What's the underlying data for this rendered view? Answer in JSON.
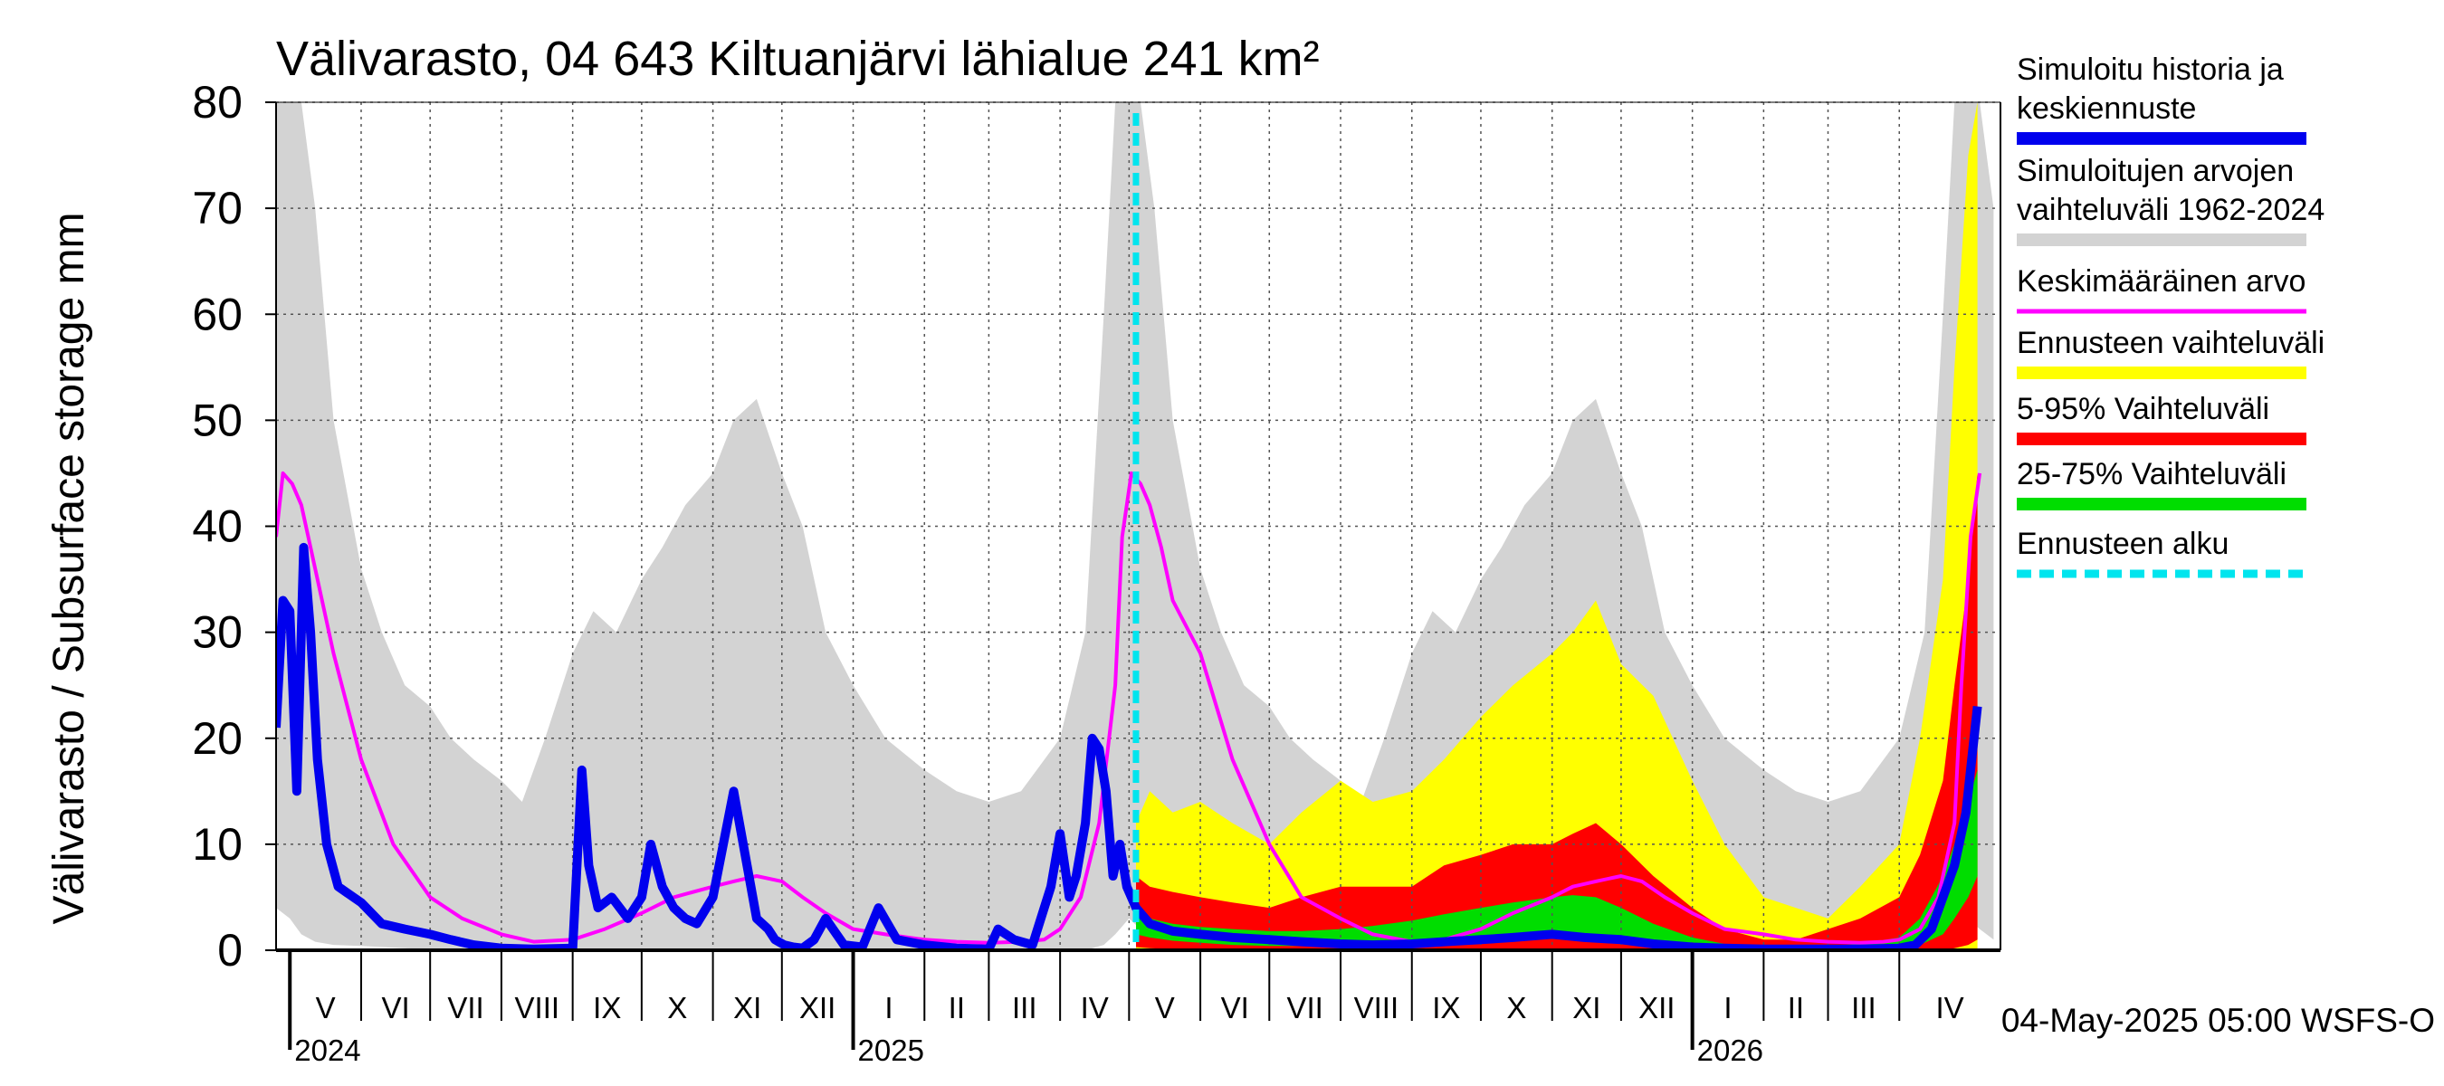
{
  "chart_data": {
    "type": "area",
    "title": "Välivarasto, 04 643 Kiltuanjärvi lähialue 241 km²",
    "ylabel": "Välivarasto / Subsurface storage  mm",
    "xlabel": "",
    "ylim": [
      0,
      80
    ],
    "yticks": [
      0,
      10,
      20,
      30,
      40,
      50,
      60,
      70,
      80
    ],
    "x_start": "2024-04-25",
    "x_end": "2026-05-15",
    "forecast_start": "2025-05-04",
    "months": [
      {
        "label": "V",
        "start": "2024-05-01"
      },
      {
        "label": "VI",
        "start": "2024-06-01"
      },
      {
        "label": "VII",
        "start": "2024-07-01"
      },
      {
        "label": "VIII",
        "start": "2024-08-01"
      },
      {
        "label": "IX",
        "start": "2024-09-01"
      },
      {
        "label": "X",
        "start": "2024-10-01"
      },
      {
        "label": "XI",
        "start": "2024-11-01"
      },
      {
        "label": "XII",
        "start": "2024-12-01"
      },
      {
        "label": "I",
        "start": "2025-01-01"
      },
      {
        "label": "II",
        "start": "2025-02-01"
      },
      {
        "label": "III",
        "start": "2025-03-01"
      },
      {
        "label": "IV",
        "start": "2025-04-01"
      },
      {
        "label": "V",
        "start": "2025-05-01"
      },
      {
        "label": "VI",
        "start": "2025-06-01"
      },
      {
        "label": "VII",
        "start": "2025-07-01"
      },
      {
        "label": "VIII",
        "start": "2025-08-01"
      },
      {
        "label": "IX",
        "start": "2025-09-01"
      },
      {
        "label": "X",
        "start": "2025-10-01"
      },
      {
        "label": "XI",
        "start": "2025-11-01"
      },
      {
        "label": "XII",
        "start": "2025-12-01"
      },
      {
        "label": "I",
        "start": "2026-01-01"
      },
      {
        "label": "II",
        "start": "2026-02-01"
      },
      {
        "label": "III",
        "start": "2026-03-01"
      },
      {
        "label": "IV",
        "start": "2026-04-01"
      }
    ],
    "year_labels": [
      {
        "label": "2024",
        "date": "2024-05-01"
      },
      {
        "label": "2025",
        "date": "2025-01-01"
      },
      {
        "label": "2026",
        "date": "2026-01-01"
      }
    ],
    "colors": {
      "history": "#0000ee",
      "range_1962_2024": "#d3d3d3",
      "mean": "#ff00ff",
      "forecast_range": "#ffff00",
      "p5_95": "#ff0000",
      "p25_75": "#00dd00",
      "forecast_start": "#00e5ee"
    },
    "series": [
      {
        "name": "Simuloitujen arvojen vaihteluväli 1962-2024",
        "kind": "band",
        "x": [
          "2024-04-25",
          "2024-05-01",
          "2024-05-06",
          "2024-05-12",
          "2024-05-20",
          "2024-06-01",
          "2024-06-10",
          "2024-06-20",
          "2024-07-01",
          "2024-07-10",
          "2024-07-20",
          "2024-08-01",
          "2024-08-10",
          "2024-08-20",
          "2024-09-01",
          "2024-09-10",
          "2024-09-20",
          "2024-10-01",
          "2024-10-10",
          "2024-10-20",
          "2024-11-01",
          "2024-11-10",
          "2024-11-20",
          "2024-12-01",
          "2024-12-10",
          "2024-12-20",
          "2025-01-01",
          "2025-01-15",
          "2025-02-01",
          "2025-02-15",
          "2025-03-01",
          "2025-03-15",
          "2025-04-01",
          "2025-04-12",
          "2025-04-20",
          "2025-04-25",
          "2025-05-01",
          "2025-05-06",
          "2025-05-12",
          "2025-05-20",
          "2025-06-01",
          "2025-06-10",
          "2025-06-20",
          "2025-07-01",
          "2025-07-10",
          "2025-07-20",
          "2025-08-01",
          "2025-08-10",
          "2025-08-20",
          "2025-09-01",
          "2025-09-10",
          "2025-09-20",
          "2025-10-01",
          "2025-10-10",
          "2025-10-20",
          "2025-11-01",
          "2025-11-10",
          "2025-11-20",
          "2025-12-01",
          "2025-12-10",
          "2025-12-20",
          "2026-01-01",
          "2026-01-15",
          "2026-02-01",
          "2026-02-15",
          "2026-03-01",
          "2026-03-15",
          "2026-04-01",
          "2026-04-12",
          "2026-04-20",
          "2026-04-25",
          "2026-05-01",
          "2026-05-06",
          "2026-05-12"
        ],
        "low": [
          4,
          3,
          1.5,
          0.8,
          0.5,
          0.4,
          0.3,
          0.2,
          0.1,
          0.1,
          0,
          0,
          0,
          0,
          0,
          0,
          0,
          0,
          0,
          0,
          0,
          0,
          0,
          0,
          0,
          0,
          0,
          0,
          0,
          0,
          0,
          0,
          0,
          0,
          0.5,
          1.5,
          3,
          2,
          1,
          0.6,
          0.4,
          0.3,
          0.2,
          0.1,
          0.1,
          0,
          0,
          0,
          0,
          0,
          0,
          0,
          0,
          0,
          0,
          0,
          0,
          0,
          0,
          0,
          0,
          0,
          0,
          0,
          0,
          0,
          0,
          0,
          0,
          0.5,
          1.5,
          3,
          2,
          1
        ],
        "high": [
          80,
          80,
          80,
          70,
          50,
          36,
          30,
          25,
          23,
          20,
          18,
          16,
          14,
          20,
          28,
          32,
          30,
          35,
          38,
          42,
          45,
          50,
          52,
          45,
          40,
          30,
          25,
          20,
          17,
          15,
          14,
          15,
          20,
          30,
          60,
          80,
          80,
          80,
          70,
          50,
          36,
          30,
          25,
          23,
          20,
          18,
          16,
          14,
          20,
          28,
          32,
          30,
          35,
          38,
          42,
          45,
          50,
          52,
          45,
          40,
          30,
          25,
          20,
          17,
          15,
          14,
          15,
          20,
          30,
          60,
          80,
          80,
          80,
          70
        ]
      },
      {
        "name": "Ennusteen vaihteluväli",
        "kind": "band",
        "x": [
          "2025-05-04",
          "2025-05-10",
          "2025-05-20",
          "2025-06-01",
          "2025-06-15",
          "2025-07-01",
          "2025-07-15",
          "2025-08-01",
          "2025-08-15",
          "2025-09-01",
          "2025-09-15",
          "2025-10-01",
          "2025-10-15",
          "2025-11-01",
          "2025-11-10",
          "2025-11-20",
          "2025-12-01",
          "2025-12-15",
          "2026-01-01",
          "2026-01-15",
          "2026-02-01",
          "2026-02-15",
          "2026-03-01",
          "2026-03-15",
          "2026-04-01",
          "2026-04-10",
          "2026-04-20",
          "2026-04-25",
          "2026-05-01",
          "2026-05-05"
        ],
        "low": [
          0,
          0,
          0,
          0,
          0,
          0,
          0,
          0,
          0,
          0,
          0,
          0,
          0,
          0,
          0,
          0,
          0,
          0,
          0,
          0,
          0,
          0,
          0,
          0,
          0,
          0,
          0,
          0,
          0,
          0
        ],
        "high": [
          12,
          15,
          13,
          14,
          12,
          10,
          13,
          16,
          14,
          15,
          18,
          22,
          25,
          28,
          30,
          33,
          27,
          24,
          16,
          10,
          5,
          4,
          3,
          6,
          10,
          20,
          35,
          55,
          75,
          80
        ]
      },
      {
        "name": "5-95% Vaihteluväli",
        "kind": "band",
        "x": [
          "2025-05-04",
          "2025-05-10",
          "2025-05-20",
          "2025-06-01",
          "2025-06-15",
          "2025-07-01",
          "2025-07-15",
          "2025-08-01",
          "2025-08-15",
          "2025-09-01",
          "2025-09-15",
          "2025-10-01",
          "2025-10-15",
          "2025-11-01",
          "2025-11-10",
          "2025-11-20",
          "2025-12-01",
          "2025-12-15",
          "2026-01-01",
          "2026-01-15",
          "2026-02-01",
          "2026-02-15",
          "2026-03-01",
          "2026-03-15",
          "2026-04-01",
          "2026-04-10",
          "2026-04-20",
          "2026-04-25",
          "2026-05-01",
          "2026-05-05"
        ],
        "low": [
          0.3,
          0.2,
          0.1,
          0.1,
          0.1,
          0,
          0,
          0,
          0,
          0,
          0,
          0,
          0,
          0,
          0,
          0,
          0,
          0,
          0,
          0,
          0,
          0,
          0,
          0,
          0,
          0,
          0,
          0.2,
          0.5,
          1
        ],
        "high": [
          7,
          6,
          5.5,
          5,
          4.5,
          4,
          5,
          6,
          6,
          6,
          8,
          9,
          10,
          10,
          11,
          12,
          10,
          7,
          4,
          2,
          1,
          1,
          2,
          3,
          5,
          9,
          16,
          25,
          35,
          45
        ]
      },
      {
        "name": "25-75% Vaihteluväli",
        "kind": "band",
        "x": [
          "2025-05-04",
          "2025-05-10",
          "2025-05-20",
          "2025-06-01",
          "2025-06-15",
          "2025-07-01",
          "2025-07-15",
          "2025-08-01",
          "2025-08-15",
          "2025-09-01",
          "2025-09-15",
          "2025-10-01",
          "2025-10-15",
          "2025-11-01",
          "2025-11-10",
          "2025-11-20",
          "2025-12-01",
          "2025-12-15",
          "2026-01-01",
          "2026-01-15",
          "2026-02-01",
          "2026-02-15",
          "2026-03-01",
          "2026-03-15",
          "2026-04-01",
          "2026-04-10",
          "2026-04-20",
          "2026-04-25",
          "2026-05-01",
          "2026-05-05"
        ],
        "low": [
          1.5,
          1.2,
          0.9,
          0.7,
          0.5,
          0.4,
          0.4,
          0.5,
          0.6,
          0.8,
          1,
          1.2,
          1.4,
          1.5,
          1.5,
          1.4,
          1.2,
          0.8,
          0.4,
          0.2,
          0.1,
          0.1,
          0.1,
          0.1,
          0.2,
          0.5,
          1.5,
          3,
          5,
          7
        ],
        "high": [
          3.5,
          3,
          2.5,
          2.2,
          2,
          1.8,
          1.8,
          2,
          2.3,
          2.8,
          3.4,
          4,
          4.5,
          5,
          5.2,
          5,
          4,
          2.5,
          1.2,
          0.6,
          0.3,
          0.3,
          0.4,
          0.6,
          1.2,
          3,
          7,
          10,
          14,
          17
        ]
      },
      {
        "name": "Keskimääräinen arvo",
        "kind": "line",
        "x": [
          "2024-04-25",
          "2024-04-28",
          "2024-05-02",
          "2024-05-06",
          "2024-05-10",
          "2024-05-15",
          "2024-05-20",
          "2024-06-01",
          "2024-06-15",
          "2024-07-01",
          "2024-07-15",
          "2024-08-01",
          "2024-08-15",
          "2024-09-01",
          "2024-09-15",
          "2024-10-01",
          "2024-10-15",
          "2024-11-01",
          "2024-11-10",
          "2024-11-20",
          "2024-12-01",
          "2024-12-10",
          "2024-12-20",
          "2025-01-01",
          "2025-01-15",
          "2025-02-01",
          "2025-02-15",
          "2025-03-01",
          "2025-03-15",
          "2025-03-25",
          "2025-04-01",
          "2025-04-10",
          "2025-04-18",
          "2025-04-25",
          "2025-04-28",
          "2025-05-02",
          "2025-05-06",
          "2025-05-10",
          "2025-05-15",
          "2025-05-20",
          "2025-06-01",
          "2025-06-15",
          "2025-07-01",
          "2025-07-15",
          "2025-08-01",
          "2025-08-15",
          "2025-09-01",
          "2025-09-15",
          "2025-10-01",
          "2025-10-15",
          "2025-11-01",
          "2025-11-10",
          "2025-11-20",
          "2025-12-01",
          "2025-12-10",
          "2025-12-20",
          "2026-01-01",
          "2026-01-15",
          "2026-02-01",
          "2026-02-15",
          "2026-03-01",
          "2026-03-15",
          "2026-03-25",
          "2026-04-01",
          "2026-04-10",
          "2026-04-18",
          "2026-04-25",
          "2026-04-28",
          "2026-05-02",
          "2026-05-06"
        ],
        "values": [
          39,
          45,
          44,
          42,
          38,
          33,
          28,
          18,
          10,
          5,
          3,
          1.5,
          0.8,
          1,
          2,
          3.5,
          5,
          6,
          6.5,
          7,
          6.5,
          5,
          3.5,
          2,
          1.5,
          1,
          0.8,
          0.7,
          0.8,
          1,
          2,
          5,
          12,
          25,
          39,
          45,
          44,
          42,
          38,
          33,
          28,
          18,
          10,
          5,
          3,
          1.5,
          0.8,
          1,
          2,
          3.5,
          5,
          6,
          6.5,
          7,
          6.5,
          5,
          3.5,
          2,
          1.5,
          1,
          0.8,
          0.7,
          0.8,
          1,
          2,
          5,
          12,
          25,
          39,
          45
        ]
      },
      {
        "name": "Simuloitu historia ja keskiennuste",
        "kind": "line",
        "x": [
          "2024-04-25",
          "2024-04-28",
          "2024-05-01",
          "2024-05-04",
          "2024-05-07",
          "2024-05-10",
          "2024-05-13",
          "2024-05-17",
          "2024-05-22",
          "2024-06-01",
          "2024-06-10",
          "2024-06-20",
          "2024-07-01",
          "2024-07-10",
          "2024-07-20",
          "2024-08-01",
          "2024-08-15",
          "2024-09-01",
          "2024-09-05",
          "2024-09-08",
          "2024-09-12",
          "2024-09-18",
          "2024-09-25",
          "2024-10-01",
          "2024-10-05",
          "2024-10-10",
          "2024-10-15",
          "2024-10-20",
          "2024-10-25",
          "2024-11-01",
          "2024-11-10",
          "2024-11-20",
          "2024-11-25",
          "2024-11-28",
          "2024-12-02",
          "2024-12-06",
          "2024-12-10",
          "2024-12-15",
          "2024-12-20",
          "2024-12-28",
          "2025-01-05",
          "2025-01-12",
          "2025-01-20",
          "2025-02-01",
          "2025-02-15",
          "2025-03-01",
          "2025-03-05",
          "2025-03-12",
          "2025-03-20",
          "2025-03-28",
          "2025-04-01",
          "2025-04-05",
          "2025-04-08",
          "2025-04-12",
          "2025-04-15",
          "2025-04-18",
          "2025-04-21",
          "2025-04-24",
          "2025-04-27",
          "2025-04-30",
          "2025-05-04",
          "2025-05-10",
          "2025-05-20",
          "2025-06-01",
          "2025-06-15",
          "2025-07-01",
          "2025-07-15",
          "2025-08-01",
          "2025-08-15",
          "2025-09-01",
          "2025-09-15",
          "2025-10-01",
          "2025-10-15",
          "2025-11-01",
          "2025-11-15",
          "2025-12-01",
          "2025-12-15",
          "2026-01-01",
          "2026-01-15",
          "2026-02-01",
          "2026-02-15",
          "2026-03-01",
          "2026-03-15",
          "2026-04-01",
          "2026-04-08",
          "2026-04-15",
          "2026-04-20",
          "2026-04-25",
          "2026-04-30",
          "2026-05-05"
        ],
        "values": [
          21,
          33,
          32,
          15,
          38,
          30,
          18,
          10,
          6,
          4.5,
          2.5,
          2,
          1.5,
          1,
          0.5,
          0.2,
          0.1,
          0.2,
          17,
          8,
          4,
          5,
          3,
          5,
          10,
          6,
          4,
          3,
          2.5,
          5,
          15,
          3,
          2,
          1,
          0.5,
          0.3,
          0.2,
          1,
          3,
          0.5,
          0.3,
          4,
          1,
          0.5,
          0.2,
          0.1,
          2,
          1,
          0.5,
          6,
          11,
          5,
          7,
          12,
          20,
          19,
          15,
          7,
          10,
          6,
          4,
          2.5,
          1.8,
          1.5,
          1.2,
          1,
          0.8,
          0.6,
          0.5,
          0.6,
          0.8,
          1,
          1.2,
          1.5,
          1.2,
          1,
          0.6,
          0.3,
          0.2,
          0.1,
          0.1,
          0.1,
          0.1,
          0.2,
          0.5,
          2,
          5,
          8,
          13,
          23
        ]
      }
    ],
    "legend": [
      {
        "label": "Simuloitu historia ja keskiennuste",
        "color": "#0000ee",
        "style": "solid"
      },
      {
        "label": "Simuloitujen arvojen vaihteluväli 1962-2024",
        "color": "#d3d3d3",
        "style": "solid"
      },
      {
        "label": "Keskimääräinen arvo",
        "color": "#ff00ff",
        "style": "thin"
      },
      {
        "label": "Ennusteen vaihteluväli",
        "color": "#ffff00",
        "style": "solid"
      },
      {
        "label": "5-95% Vaihteluväli",
        "color": "#ff0000",
        "style": "solid"
      },
      {
        "label": "25-75% Vaihteluväli",
        "color": "#00dd00",
        "style": "solid"
      },
      {
        "label": "Ennusteen alku",
        "color": "#00e5ee",
        "style": "dashed"
      }
    ],
    "legend_position": "right",
    "grid": true,
    "footer": "04-May-2025 05:00 WSFS-O"
  }
}
